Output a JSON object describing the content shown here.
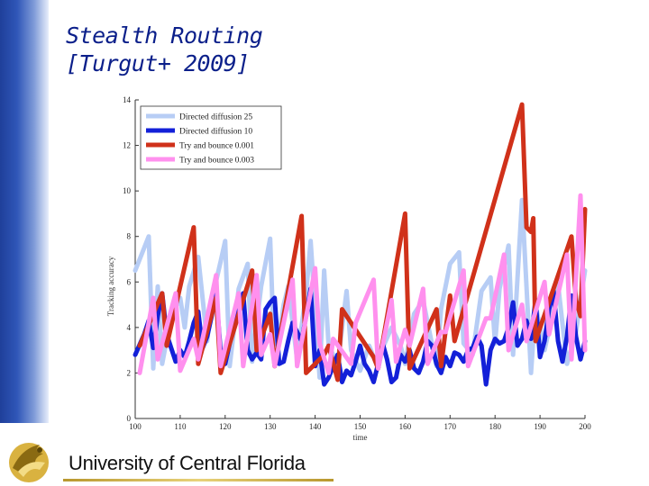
{
  "slide": {
    "title_line1": "Stealth Routing",
    "title_line2": "[Turgut+ 2009]",
    "footer_text": "University of Central Florida",
    "colors": {
      "title": "#0b1f8a",
      "band": "#2f56b8",
      "gold": "#c9a53a"
    }
  },
  "chart_data": {
    "type": "line",
    "xlabel": "time",
    "ylabel": "Tracking accuracy",
    "xlim": [
      100,
      200
    ],
    "ylim": [
      0,
      14
    ],
    "xticks": [
      "100",
      "110",
      "120",
      "130",
      "140",
      "150",
      "160",
      "170",
      "180",
      "190",
      "200"
    ],
    "yticks": [
      "0",
      "2",
      "4",
      "6",
      "8",
      "10",
      "12",
      "14"
    ],
    "legend_position": "top-left",
    "grid": false,
    "series": [
      {
        "name": "Directed diffusion 25",
        "color": "#b7cdf5",
        "x": [
          100,
          101,
          103,
          104,
          105,
          106,
          108,
          110,
          111,
          112,
          114,
          116,
          117,
          119,
          120,
          121,
          123,
          125,
          126,
          128,
          130,
          131,
          133,
          134,
          136,
          138,
          139,
          141,
          142,
          143,
          145,
          147,
          148,
          150,
          152,
          154,
          155,
          157,
          159,
          160,
          162,
          164,
          165,
          167,
          168,
          170,
          172,
          173,
          175,
          177,
          179,
          180,
          181,
          183,
          184,
          186,
          188,
          189,
          191,
          193,
          194,
          196,
          198,
          199,
          200
        ],
        "y": [
          6.5,
          7.0,
          8.0,
          2.2,
          5.8,
          2.4,
          4.5,
          5.3,
          4.0,
          5.8,
          7.1,
          3.4,
          5.2,
          6.9,
          7.8,
          2.3,
          5.7,
          6.8,
          2.5,
          5.8,
          7.9,
          2.3,
          5.0,
          5.8,
          2.6,
          5.5,
          7.8,
          1.8,
          6.5,
          3.2,
          2.4,
          5.6,
          3.0,
          2.1,
          3.2,
          2.2,
          3.1,
          4.0,
          3.2,
          2.4,
          4.6,
          5.2,
          4.2,
          2.3,
          4.8,
          6.8,
          7.3,
          3.3,
          2.8,
          5.6,
          6.2,
          3.3,
          5.7,
          7.6,
          2.8,
          9.6,
          2.0,
          5.0,
          3.0,
          4.8,
          5.9,
          2.4,
          3.8,
          5.2,
          6.5
        ]
      },
      {
        "name": "Directed diffusion 10",
        "color": "#1320d8",
        "x": [
          100,
          102,
          103,
          104,
          105,
          106,
          107,
          108,
          109,
          110,
          111,
          112,
          113,
          114,
          115,
          116,
          117,
          118,
          119,
          120,
          121,
          122,
          123,
          124,
          125,
          126,
          127,
          128,
          129,
          130,
          131,
          132,
          133,
          134,
          135,
          136,
          137,
          138,
          139,
          140,
          141,
          142,
          143,
          144,
          145,
          146,
          147,
          148,
          149,
          150,
          151,
          152,
          153,
          154,
          155,
          156,
          157,
          158,
          159,
          160,
          161,
          162,
          163,
          164,
          165,
          166,
          167,
          168,
          169,
          170,
          171,
          172,
          173,
          174,
          175,
          176,
          177,
          178,
          179,
          180,
          181,
          182,
          183,
          184,
          185,
          186,
          187,
          188,
          189,
          190,
          191,
          192,
          193,
          194,
          195,
          196,
          197,
          198,
          199,
          200
        ],
        "y": [
          2.8,
          3.7,
          4.3,
          3.1,
          4.5,
          5.5,
          3.7,
          3.1,
          2.5,
          3.0,
          2.7,
          3.4,
          4.2,
          4.7,
          3.1,
          3.6,
          4.5,
          5.5,
          2.9,
          2.4,
          3.3,
          4.4,
          5.0,
          5.5,
          3.0,
          2.6,
          2.9,
          2.6,
          4.8,
          5.1,
          5.3,
          2.4,
          2.5,
          3.4,
          4.2,
          3.8,
          3.4,
          4.5,
          5.7,
          2.3,
          3.0,
          1.5,
          1.8,
          2.3,
          2.8,
          1.6,
          2.1,
          1.9,
          2.5,
          3.2,
          2.4,
          2.1,
          1.6,
          2.4,
          3.3,
          2.6,
          1.6,
          1.8,
          2.8,
          2.5,
          3.0,
          2.2,
          2.0,
          2.5,
          3.4,
          3.2,
          2.4,
          2.0,
          2.7,
          2.3,
          2.9,
          2.8,
          2.5,
          3.0,
          3.1,
          3.6,
          3.2,
          1.5,
          3.0,
          3.5,
          3.3,
          3.4,
          4.0,
          5.1,
          3.2,
          3.5,
          4.3,
          3.5,
          5.2,
          2.7,
          3.4,
          4.8,
          5.6,
          3.4,
          2.5,
          3.6,
          5.4,
          3.6,
          2.6,
          3.4
        ]
      },
      {
        "name": "Try and bounce 0.001",
        "color": "#d0311a",
        "x": [
          101,
          106,
          107,
          113,
          114,
          118,
          119,
          126,
          127,
          130,
          131,
          137,
          138,
          142,
          143,
          145,
          146,
          153,
          154,
          160,
          161,
          167,
          168,
          170,
          171,
          186,
          187,
          188,
          188.5,
          189,
          197,
          198,
          199,
          200
        ],
        "y": [
          3.2,
          5.5,
          3.2,
          8.4,
          2.4,
          5.3,
          2.0,
          6.5,
          3.0,
          4.6,
          2.3,
          8.9,
          2.0,
          2.8,
          3.2,
          1.7,
          4.8,
          2.7,
          2.2,
          9.0,
          2.2,
          4.8,
          2.3,
          5.4,
          3.4,
          13.8,
          8.4,
          8.2,
          8.8,
          3.4,
          8.0,
          5.2,
          4.5,
          9.2
        ]
      },
      {
        "name": "Try and bounce 0.003",
        "color": "#ff90ee",
        "x": [
          101,
          104,
          105,
          109,
          110,
          113,
          114,
          118,
          119,
          123,
          124,
          127,
          128,
          130,
          131,
          135,
          136,
          140,
          141,
          143,
          144,
          148,
          149,
          153,
          154,
          157,
          158,
          160,
          161,
          164,
          165,
          168,
          169,
          173,
          174,
          178,
          179,
          182,
          183,
          186,
          187,
          191,
          192,
          196,
          197,
          199,
          200
        ],
        "y": [
          2.0,
          5.3,
          2.6,
          5.5,
          2.1,
          3.5,
          2.6,
          6.3,
          2.3,
          5.5,
          2.3,
          6.3,
          2.8,
          3.7,
          2.3,
          6.1,
          2.3,
          6.6,
          3.3,
          2.0,
          3.5,
          2.4,
          4.2,
          6.1,
          2.2,
          5.2,
          2.5,
          3.9,
          3.2,
          5.7,
          2.4,
          3.8,
          3.8,
          6.5,
          2.3,
          4.4,
          4.4,
          7.2,
          3.0,
          5.0,
          3.4,
          6.0,
          3.7,
          7.2,
          2.6,
          9.8,
          3.0
        ]
      }
    ]
  }
}
